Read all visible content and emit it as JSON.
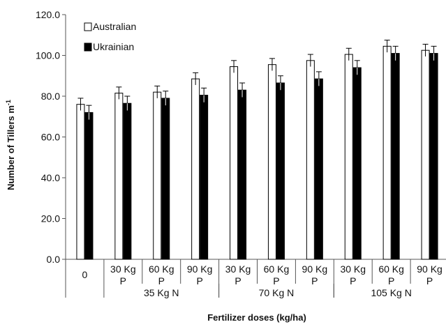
{
  "chart_data": {
    "type": "bar",
    "title": "",
    "xlabel": "Fertilizer doses (kg/ha)",
    "ylabel": "Number of Tillers m",
    "ylabel_superscript": "-1",
    "ylim": [
      0,
      120
    ],
    "yticks": [
      "0.0",
      "20.0",
      "40.0",
      "60.0",
      "80.0",
      "100.0",
      "120.0"
    ],
    "legend_position": "top-left",
    "categories": [
      {
        "line1": "0",
        "line2": ""
      },
      {
        "line1": "30 Kg",
        "line2": "P"
      },
      {
        "line1": "60 Kg",
        "line2": "P"
      },
      {
        "line1": "90 Kg",
        "line2": "P"
      },
      {
        "line1": "30 Kg",
        "line2": "P"
      },
      {
        "line1": "60 Kg",
        "line2": "P"
      },
      {
        "line1": "90 Kg",
        "line2": "P"
      },
      {
        "line1": "30 Kg",
        "line2": "P"
      },
      {
        "line1": "60 Kg",
        "line2": "P"
      },
      {
        "line1": "90 Kg",
        "line2": "P"
      }
    ],
    "groups": [
      {
        "label": "35 Kg N",
        "start": 1,
        "end": 3
      },
      {
        "label": "70 Kg N",
        "start": 4,
        "end": 6
      },
      {
        "label": "105 Kg N",
        "start": 7,
        "end": 9
      }
    ],
    "series": [
      {
        "name": "Australian",
        "color": "#ffffff",
        "stroke": "#000000",
        "values": [
          76,
          81.5,
          82,
          88.5,
          94.5,
          95.5,
          97.5,
          100.5,
          104.5,
          102.5
        ],
        "errors": [
          3,
          3,
          3,
          3,
          3,
          3,
          3,
          3,
          3,
          3
        ]
      },
      {
        "name": "Ukrainian",
        "color": "#000000",
        "stroke": "#000000",
        "values": [
          72,
          76.5,
          79,
          80.5,
          83,
          86.5,
          88.5,
          94,
          101,
          101
        ],
        "errors": [
          3.5,
          3.5,
          3.5,
          3.5,
          3.5,
          3.5,
          3.5,
          3.5,
          3.5,
          3.5
        ]
      }
    ]
  }
}
